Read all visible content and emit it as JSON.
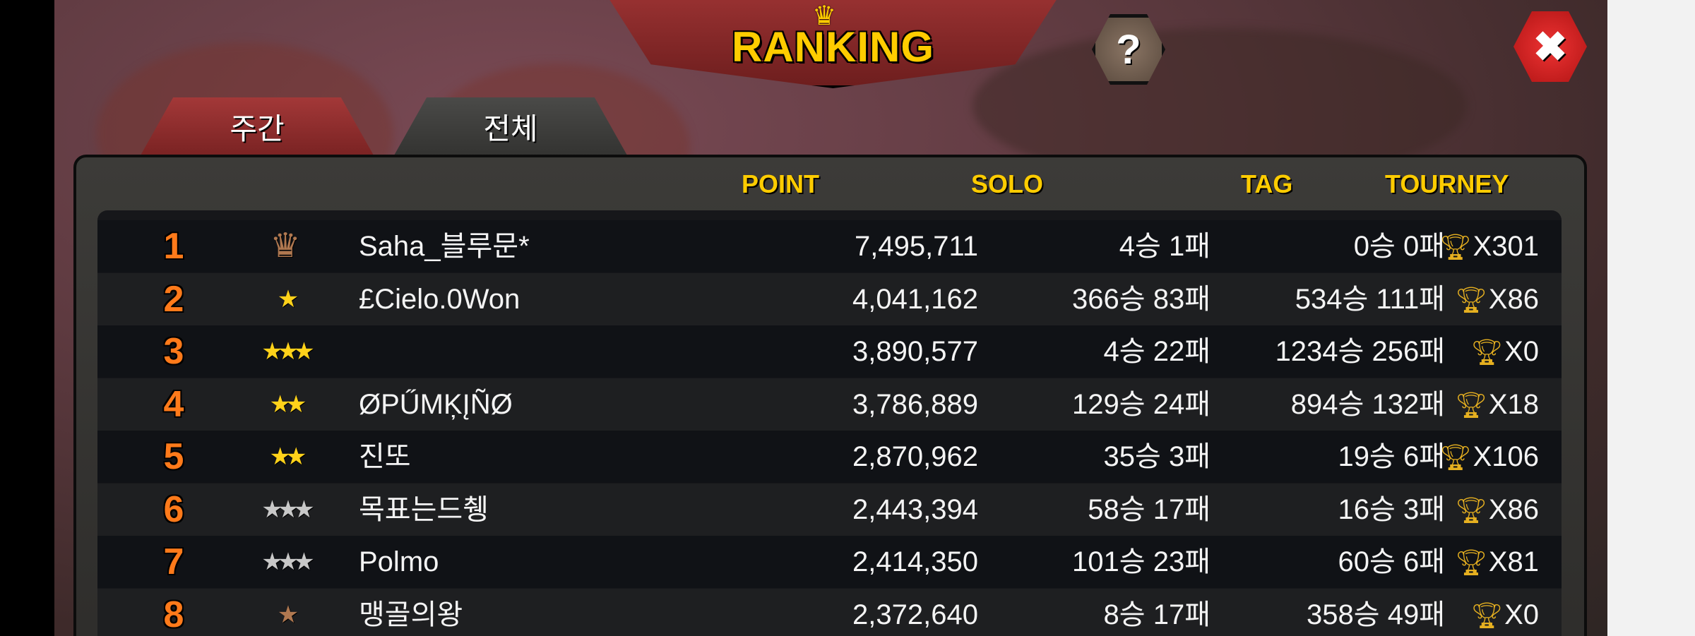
{
  "header": {
    "title": "RANKING",
    "crown_icon": "crown-icon",
    "help_label": "?",
    "close_icon": "close-icon"
  },
  "tabs": [
    {
      "label": "주간",
      "active": true
    },
    {
      "label": "전체",
      "active": false
    }
  ],
  "columns": {
    "point": "POINT",
    "solo": "SOLO",
    "tag": "TAG",
    "tourney": "TOURNEY"
  },
  "colors": {
    "header": "#ffcc00",
    "rank": "#ff7a1a",
    "gold_star": "#ffd21a",
    "silver_star": "#c8c8c8",
    "bronze_star": "#b07850",
    "trophy": "#e6b020"
  },
  "rows": [
    {
      "rank": "1",
      "badge": {
        "type": "crown",
        "count": 1,
        "tier": "bronze"
      },
      "name": "Saha_블루문*",
      "point": "7,495,711",
      "solo": "4승 1패",
      "tag": "0승 0패",
      "tourney": "X301"
    },
    {
      "rank": "2",
      "badge": {
        "type": "star",
        "count": 1,
        "tier": "gold"
      },
      "name": "£Cielo.0Won",
      "point": "4,041,162",
      "solo": "366승 83패",
      "tag": "534승 111패",
      "tourney": "X86"
    },
    {
      "rank": "3",
      "badge": {
        "type": "star",
        "count": 3,
        "tier": "gold"
      },
      "name": "",
      "point": "3,890,577",
      "solo": "4승 22패",
      "tag": "1234승 256패",
      "tourney": "X0"
    },
    {
      "rank": "4",
      "badge": {
        "type": "star",
        "count": 2,
        "tier": "gold"
      },
      "name": "ØPŰMĶĮÑØ",
      "point": "3,786,889",
      "solo": "129승 24패",
      "tag": "894승 132패",
      "tourney": "X18"
    },
    {
      "rank": "5",
      "badge": {
        "type": "star",
        "count": 2,
        "tier": "gold"
      },
      "name": "진또",
      "point": "2,870,962",
      "solo": "35승 3패",
      "tag": "19승 6패",
      "tourney": "X106"
    },
    {
      "rank": "6",
      "badge": {
        "type": "star",
        "count": 3,
        "tier": "silver"
      },
      "name": "목표는드췡",
      "point": "2,443,394",
      "solo": "58승 17패",
      "tag": "16승 3패",
      "tourney": "X86"
    },
    {
      "rank": "7",
      "badge": {
        "type": "star",
        "count": 3,
        "tier": "silver"
      },
      "name": "Polmo",
      "point": "2,414,350",
      "solo": "101승 23패",
      "tag": "60승 6패",
      "tourney": "X81"
    },
    {
      "rank": "8",
      "badge": {
        "type": "star",
        "count": 1,
        "tier": "bronze"
      },
      "name": "맹골의왕",
      "point": "2,372,640",
      "solo": "8승 17패",
      "tag": "358승 49패",
      "tourney": "X0"
    }
  ]
}
